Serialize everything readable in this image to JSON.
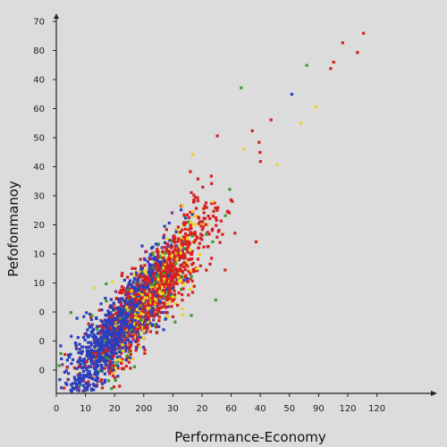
{
  "chart_data": {
    "type": "scatter",
    "xlabel": "Performance-Economy",
    "ylabel": "Pefofonmanoy",
    "x_tick_labels": [
      "0",
      "10",
      "20",
      "200",
      "30",
      "20",
      "60",
      "40",
      "50",
      "90",
      "120",
      "120"
    ],
    "y_tick_labels": [
      "0",
      "0",
      "0",
      "10",
      "10",
      "20",
      "30",
      "40",
      "50",
      "60",
      "40",
      "80",
      "70",
      "20",
      "–"
    ],
    "grid": false,
    "legend": "none",
    "colors": {
      "blue": "#2b3fbd",
      "red": "#d42020",
      "yellow": "#f2d21b",
      "green": "#3c9a32",
      "purple": "#7a3a8c",
      "axis": "#222222",
      "background": "#dcdcdc"
    },
    "clusters": [
      {
        "color": "blue",
        "count": 1150,
        "x_center": 20,
        "y_center": 5,
        "x_spread": 16,
        "slope": 1.1,
        "noise": 7
      },
      {
        "color": "red",
        "count": 980,
        "x_center": 33,
        "y_center": 18,
        "x_spread": 18,
        "slope": 1.1,
        "noise": 8
      },
      {
        "color": "yellow",
        "count": 320,
        "x_center": 31,
        "y_center": 15,
        "x_spread": 14,
        "slope": 1.1,
        "noise": 7
      },
      {
        "color": "green",
        "count": 150,
        "x_center": 28,
        "y_center": 12,
        "x_spread": 20,
        "slope": 1.1,
        "noise": 9
      },
      {
        "color": "purple",
        "count": 140,
        "x_center": 22,
        "y_center": 8,
        "x_spread": 15,
        "slope": 1.1,
        "noise": 7
      }
    ],
    "outliers": [
      {
        "color": "red",
        "x": 103,
        "y": 98
      },
      {
        "color": "red",
        "x": 96,
        "y": 95
      },
      {
        "color": "red",
        "x": 101,
        "y": 92
      },
      {
        "color": "red",
        "x": 93,
        "y": 89
      },
      {
        "color": "red",
        "x": 92,
        "y": 87
      },
      {
        "color": "green",
        "x": 84,
        "y": 88
      },
      {
        "color": "green",
        "x": 62,
        "y": 81
      },
      {
        "color": "blue",
        "x": 79,
        "y": 79
      },
      {
        "color": "yellow",
        "x": 87,
        "y": 75
      },
      {
        "color": "red",
        "x": 72,
        "y": 71
      },
      {
        "color": "yellow",
        "x": 82,
        "y": 70
      },
      {
        "color": "red",
        "x": 54,
        "y": 66
      },
      {
        "color": "red",
        "x": 68,
        "y": 64
      },
      {
        "color": "yellow",
        "x": 63,
        "y": 62
      },
      {
        "color": "yellow",
        "x": 74,
        "y": 57
      },
      {
        "color": "red",
        "x": 67,
        "y": 33
      },
      {
        "color": "red",
        "x": 58,
        "y": 42
      },
      {
        "color": "green",
        "x": 12,
        "y": 10
      }
    ],
    "xlim": [
      0,
      125
    ],
    "ylim": [
      -12,
      100
    ]
  }
}
